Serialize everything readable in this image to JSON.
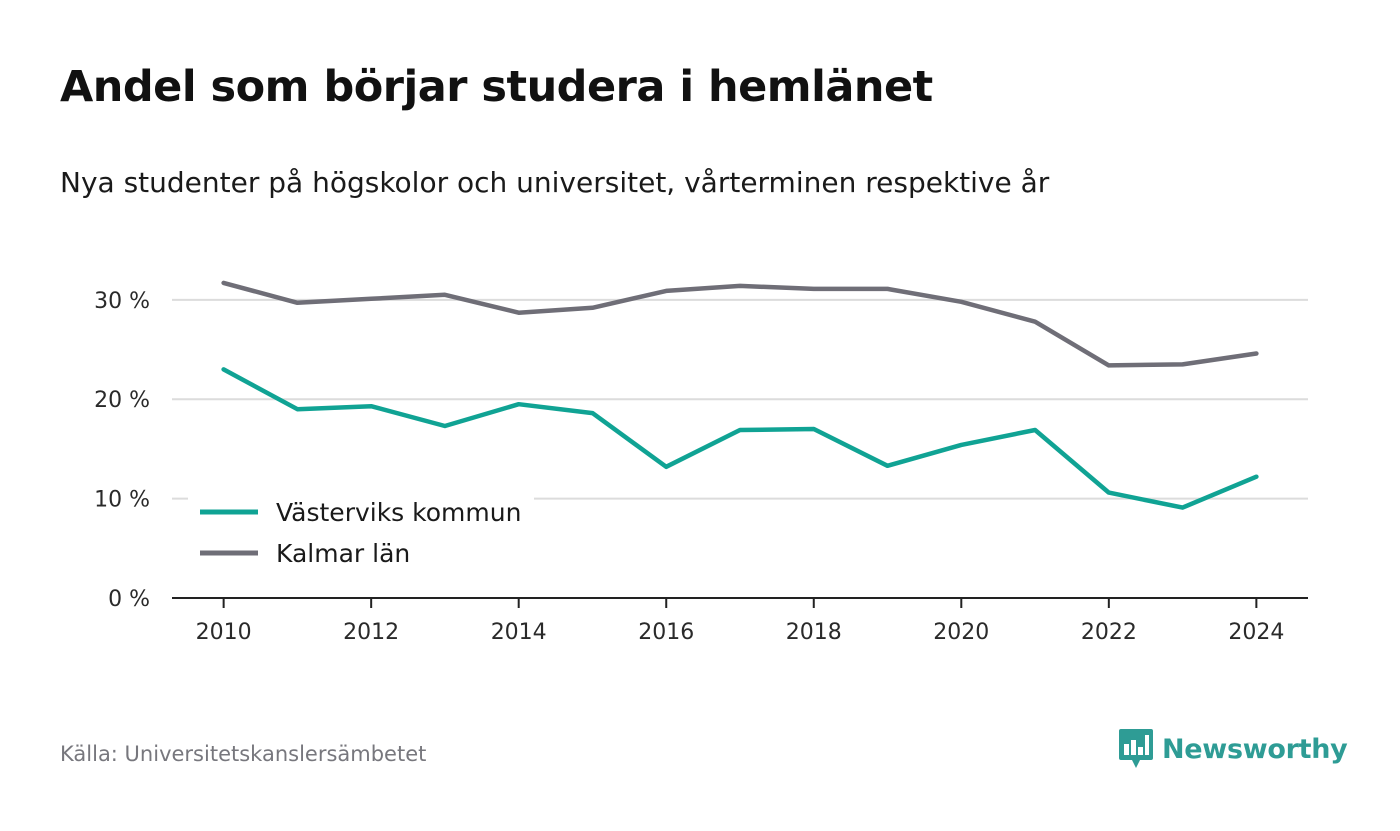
{
  "title": "Andel som börjar studera i hemlänet",
  "subtitle": "Nya studenter på högskolor och universitet, vårterminen respektive år",
  "source": "Källa: Universitetskanslersämbetet",
  "brand": {
    "name": "Newsworthy",
    "icon": "newsworthy-logo-icon",
    "color": "#2e9c95"
  },
  "chart_data": {
    "type": "line",
    "title": "Andel som börjar studera i hemlänet",
    "subtitle": "Nya studenter på högskolor och universitet, vårterminen respektive år",
    "x": [
      2010,
      2011,
      2012,
      2013,
      2014,
      2015,
      2016,
      2017,
      2018,
      2019,
      2020,
      2021,
      2022,
      2023,
      2024
    ],
    "xticks": [
      "2010",
      "2012",
      "2014",
      "2016",
      "2018",
      "2020",
      "2022",
      "2024"
    ],
    "yticks": [
      "0 %",
      "10 %",
      "20 %",
      "30 %"
    ],
    "ytick_values": [
      0,
      10,
      20,
      30
    ],
    "xlim": [
      2009.3,
      2024.7
    ],
    "ylim": [
      0,
      33
    ],
    "grid": true,
    "legend": "bottom-left",
    "series": [
      {
        "name": "Västerviks kommun",
        "color": "#10a394",
        "values": [
          23.0,
          19.0,
          19.3,
          17.3,
          19.5,
          18.6,
          13.2,
          16.9,
          17.0,
          13.3,
          15.4,
          16.9,
          10.6,
          9.1,
          12.2
        ]
      },
      {
        "name": "Kalmar län",
        "color": "#6f6e77",
        "values": [
          31.7,
          29.7,
          30.1,
          30.5,
          28.7,
          29.2,
          30.9,
          31.4,
          31.1,
          31.1,
          29.8,
          27.8,
          23.4,
          23.5,
          24.6
        ]
      }
    ]
  }
}
